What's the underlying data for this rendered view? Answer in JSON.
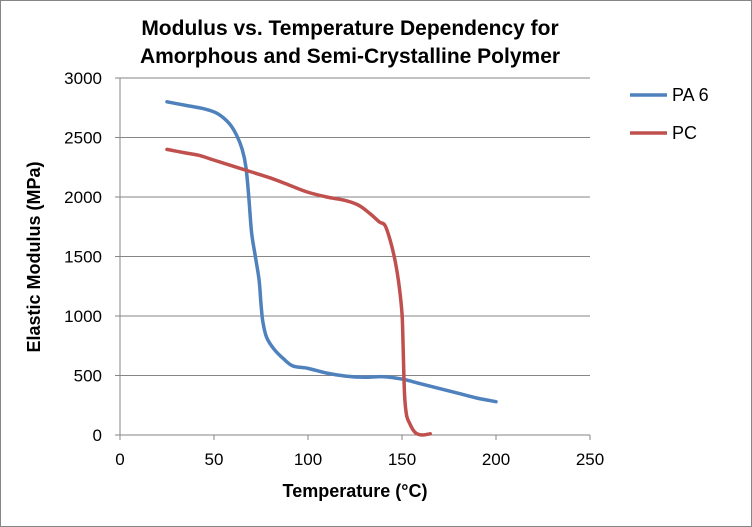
{
  "chart_data": {
    "type": "line",
    "title_lines": [
      "Modulus vs. Temperature Dependency for",
      "Amorphous and Semi-Crystalline Polymer"
    ],
    "xlabel": "Temperature (°C)",
    "ylabel": "Elastic Modulus (MPa)",
    "xlim": [
      0,
      250
    ],
    "ylim": [
      0,
      3000
    ],
    "xticks": [
      0,
      50,
      100,
      150,
      200,
      250
    ],
    "yticks": [
      0,
      500,
      1000,
      1500,
      2000,
      2500,
      3000
    ],
    "grid": "horizontal",
    "legend_position": "right",
    "series": [
      {
        "name": "PA 6",
        "color": "#4f81bd",
        "points": [
          [
            25,
            2800
          ],
          [
            35,
            2770
          ],
          [
            45,
            2740
          ],
          [
            52,
            2700
          ],
          [
            58,
            2620
          ],
          [
            62,
            2520
          ],
          [
            65,
            2400
          ],
          [
            67,
            2250
          ],
          [
            68.5,
            2000
          ],
          [
            70,
            1700
          ],
          [
            72,
            1500
          ],
          [
            74,
            1300
          ],
          [
            75,
            1100
          ],
          [
            76,
            950
          ],
          [
            78,
            820
          ],
          [
            82,
            720
          ],
          [
            87,
            640
          ],
          [
            92,
            580
          ],
          [
            100,
            560
          ],
          [
            110,
            520
          ],
          [
            120,
            495
          ],
          [
            130,
            485
          ],
          [
            140,
            490
          ],
          [
            150,
            470
          ],
          [
            160,
            430
          ],
          [
            170,
            390
          ],
          [
            180,
            350
          ],
          [
            190,
            310
          ],
          [
            200,
            280
          ]
        ]
      },
      {
        "name": "PC",
        "color": "#c0504d",
        "points": [
          [
            25,
            2400
          ],
          [
            35,
            2370
          ],
          [
            42,
            2350
          ],
          [
            50,
            2310
          ],
          [
            60,
            2260
          ],
          [
            70,
            2210
          ],
          [
            80,
            2160
          ],
          [
            90,
            2100
          ],
          [
            100,
            2040
          ],
          [
            110,
            2000
          ],
          [
            120,
            1970
          ],
          [
            127,
            1930
          ],
          [
            133,
            1860
          ],
          [
            138,
            1790
          ],
          [
            141,
            1760
          ],
          [
            144,
            1620
          ],
          [
            146.5,
            1450
          ],
          [
            148.5,
            1250
          ],
          [
            150,
            1020
          ],
          [
            150.5,
            800
          ],
          [
            151,
            500
          ],
          [
            151.5,
            300
          ],
          [
            152.5,
            160
          ],
          [
            154,
            100
          ],
          [
            156,
            40
          ],
          [
            158,
            10
          ],
          [
            161,
            0
          ],
          [
            165,
            10
          ]
        ]
      }
    ]
  }
}
